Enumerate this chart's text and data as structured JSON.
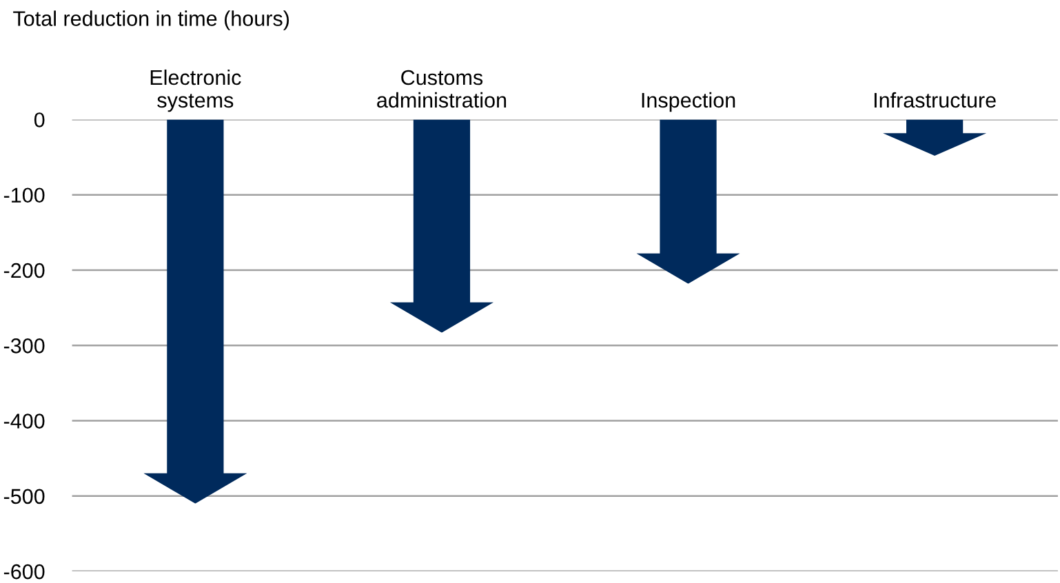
{
  "chart_data": {
    "type": "bar",
    "title": "Total reduction in time (hours)",
    "categories": [
      "Electronic\nsystems",
      "Customs\nadministration",
      "Inspection",
      "Infrastructure"
    ],
    "values": [
      -510,
      -283,
      -218,
      -48
    ],
    "color": "#002a5c",
    "ylim": [
      -600,
      0
    ],
    "yticks": [
      0,
      -100,
      -200,
      -300,
      -400,
      -500,
      -600
    ],
    "grid": "y"
  }
}
